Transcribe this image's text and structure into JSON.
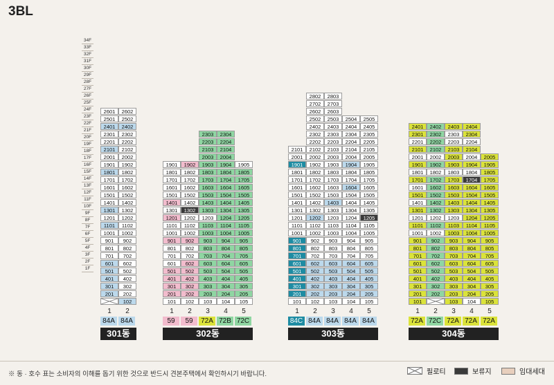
{
  "title": "3BL",
  "floor_labels": [
    "34F",
    "33F",
    "32F",
    "31F",
    "30F",
    "29F",
    "28F",
    "27F",
    "26F",
    "25F",
    "24F",
    "23F",
    "22F",
    "21F",
    "20F",
    "19F",
    "18F",
    "17F",
    "16F",
    "15F",
    "14F",
    "13F",
    "12F",
    "11F",
    "10F",
    "9F",
    "8F",
    "7F",
    "6F",
    "5F",
    "4F",
    "3F",
    "2F",
    "1F"
  ],
  "colors": {
    "white": "#ffffff",
    "blue": "#bcd9ec",
    "pink": "#f2bccd",
    "green": "#8fd6a2",
    "yellow": "#dbe33a",
    "teal": "#1e8ca3",
    "dark": "#3a3a3a",
    "legend_rental": "#e8cfbd"
  },
  "buildings": [
    {
      "name": "301동",
      "lines": [
        {
          "no": "1",
          "type": "84A",
          "type_color": "blue",
          "max": 26,
          "pilotis": [
            1
          ],
          "blue": [
            2,
            3,
            4,
            5,
            6,
            11,
            13,
            18,
            21,
            24
          ],
          "pink": [],
          "green": [],
          "yellow": [],
          "teal": [],
          "dark": [],
          "white": []
        },
        {
          "no": "2",
          "type": "84A",
          "type_color": "blue",
          "max": 26,
          "pilotis": [],
          "blue": [
            1,
            24
          ],
          "pink": [],
          "green": [],
          "yellow": [],
          "teal": [],
          "dark": [],
          "white": []
        }
      ]
    },
    {
      "name": "302동",
      "lines": [
        {
          "no": "1",
          "type": "59",
          "type_color": "pink",
          "max": 19,
          "pilotis": [],
          "blue": [],
          "pink": [
            2,
            3,
            4,
            5,
            9,
            12,
            14
          ],
          "green": [],
          "yellow": [],
          "teal": [],
          "dark": [],
          "white": []
        },
        {
          "no": "2",
          "type": "59",
          "type_color": "pink",
          "max": 19,
          "pilotis": [],
          "blue": [],
          "pink": [
            2,
            3,
            4,
            5,
            6,
            9,
            19
          ],
          "green": [],
          "yellow": [],
          "teal": [],
          "dark": [
            13
          ],
          "white": []
        },
        {
          "no": "3",
          "type": "72A",
          "type_color": "yellow",
          "max": 23,
          "pilotis": [],
          "blue": [],
          "pink": [],
          "green": [
            2,
            3,
            4,
            5,
            6,
            7,
            8,
            9,
            10,
            11,
            13,
            14,
            15,
            16,
            17,
            18,
            19,
            20,
            21,
            22,
            23
          ],
          "yellow": [],
          "teal": [],
          "dark": [],
          "white": []
        },
        {
          "no": "4",
          "type": "72B",
          "type_color": "green",
          "max": 23,
          "pilotis": [],
          "blue": [],
          "pink": [],
          "green": [
            2,
            3,
            4,
            5,
            6,
            7,
            8,
            9,
            10,
            11,
            12,
            13,
            14,
            15,
            16,
            17,
            18,
            19,
            20,
            21,
            22,
            23
          ],
          "yellow": [],
          "teal": [],
          "dark": [],
          "white": []
        },
        {
          "no": "5",
          "type": "72C",
          "type_color": "green",
          "max": 19,
          "pilotis": [],
          "blue": [],
          "pink": [],
          "green": [
            2,
            3,
            4,
            5,
            6,
            7,
            8,
            9,
            10,
            11,
            12,
            13,
            14,
            15,
            16,
            17,
            18
          ],
          "yellow": [],
          "teal": [],
          "dark": [],
          "white": []
        }
      ]
    },
    {
      "name": "303동",
      "lines": [
        {
          "no": "1",
          "type": "84C",
          "type_color": "teal",
          "max": 21,
          "pilotis": [],
          "blue": [],
          "pink": [],
          "green": [],
          "yellow": [],
          "teal": [
            2,
            3,
            4,
            5,
            6,
            7,
            8,
            9,
            19
          ],
          "dark": [],
          "white": []
        },
        {
          "no": "2",
          "type": "84A",
          "type_color": "blue",
          "max": 28,
          "pilotis": [],
          "blue": [
            2,
            3,
            4,
            5,
            6,
            12
          ],
          "pink": [],
          "green": [],
          "yellow": [],
          "teal": [],
          "dark": [],
          "white": []
        },
        {
          "no": "3",
          "type": "84A",
          "type_color": "blue",
          "max": 28,
          "pilotis": [],
          "blue": [
            2,
            3,
            4,
            5,
            6,
            14
          ],
          "pink": [],
          "green": [],
          "yellow": [],
          "teal": [],
          "dark": [],
          "white": []
        },
        {
          "no": "4",
          "type": "84A",
          "type_color": "blue",
          "max": 25,
          "pilotis": [],
          "blue": [
            2,
            3,
            4,
            5,
            6,
            16,
            19
          ],
          "pink": [],
          "green": [],
          "yellow": [],
          "teal": [],
          "dark": [],
          "white": []
        },
        {
          "no": "5",
          "type": "84A",
          "type_color": "blue",
          "max": 25,
          "pilotis": [],
          "blue": [
            2,
            3,
            4,
            5,
            6
          ],
          "pink": [],
          "green": [],
          "yellow": [],
          "teal": [],
          "dark": [
            12
          ],
          "white": []
        }
      ]
    },
    {
      "name": "304동",
      "lines": [
        {
          "no": "1",
          "type": "72A",
          "type_color": "yellow",
          "max": 24,
          "pilotis": [],
          "blue": [],
          "pink": [],
          "green": [],
          "yellow": [
            1,
            2,
            3,
            4,
            5,
            6,
            7,
            8,
            9,
            11,
            13,
            15,
            17,
            19,
            21,
            23,
            24
          ],
          "teal": [],
          "dark": [],
          "white": []
        },
        {
          "no": "2",
          "type": "72C",
          "type_color": "green",
          "max": 24,
          "pilotis": [
            1
          ],
          "blue": [],
          "pink": [],
          "green": [
            2,
            3,
            4,
            5,
            6,
            7,
            8,
            9,
            11,
            13,
            14,
            15,
            16,
            17,
            19,
            21,
            22,
            23,
            24
          ],
          "yellow": [],
          "teal": [],
          "dark": [],
          "white": []
        },
        {
          "no": "3",
          "type": "72A",
          "type_color": "yellow",
          "max": 24,
          "pilotis": [],
          "blue": [],
          "pink": [],
          "green": [],
          "yellow": [
            1,
            2,
            3,
            4,
            5,
            6,
            7,
            8,
            9,
            10,
            11,
            13,
            14,
            15,
            16,
            17,
            19,
            20,
            21,
            24
          ],
          "teal": [],
          "dark": [],
          "white": []
        },
        {
          "no": "4",
          "type": "72A",
          "type_color": "yellow",
          "max": 24,
          "pilotis": [],
          "blue": [],
          "pink": [],
          "green": [],
          "yellow": [
            2,
            3,
            4,
            5,
            6,
            7,
            8,
            9,
            10,
            11,
            12,
            13,
            14,
            15,
            16,
            19,
            21,
            23,
            24
          ],
          "teal": [],
          "dark": [
            17
          ],
          "white": []
        },
        {
          "no": "5",
          "type": "72A",
          "type_color": "yellow",
          "max": 20,
          "pilotis": [],
          "blue": [],
          "pink": [],
          "green": [],
          "yellow": [
            1,
            2,
            3,
            4,
            5,
            6,
            7,
            8,
            9,
            10,
            11,
            12,
            13,
            14,
            15,
            16,
            17,
            18,
            19,
            20
          ],
          "teal": [],
          "dark": [],
          "white": []
        }
      ]
    }
  ],
  "footnote": "※ 동 · 호수 표는 소비자의 이해를 돕기 위한 것으로 반드시 견본주택에서 확인하시기 바랍니다.",
  "legend": [
    {
      "label": "필로티",
      "kind": "pilotis"
    },
    {
      "label": "보류지",
      "kind": "dark"
    },
    {
      "label": "임대세대",
      "kind": "rental"
    }
  ]
}
